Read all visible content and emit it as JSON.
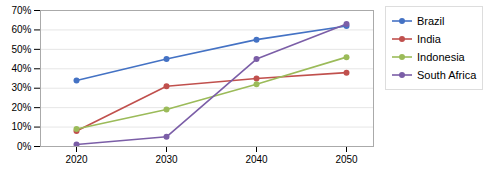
{
  "chart_data": {
    "type": "line",
    "x": [
      2020,
      2030,
      2040,
      2050
    ],
    "series": [
      {
        "name": "Brazil",
        "color": "#4472C4",
        "marker": "circle",
        "values": [
          34,
          45,
          55,
          62
        ]
      },
      {
        "name": "India",
        "color": "#C0504D",
        "marker": "circle",
        "values": [
          8,
          31,
          35,
          38
        ]
      },
      {
        "name": "Indonesia",
        "color": "#9BBB59",
        "marker": "circle",
        "values": [
          9,
          19,
          32,
          46
        ]
      },
      {
        "name": "South Africa",
        "color": "#7B5EA7",
        "marker": "circle",
        "values": [
          1,
          5,
          45,
          63
        ]
      }
    ],
    "xlim": [
      2016,
      2053
    ],
    "xticks": [
      2020,
      2030,
      2040,
      2050
    ],
    "ylim": [
      0,
      70
    ],
    "yticks": [
      {
        "value": 0,
        "label": "0%"
      },
      {
        "value": 10,
        "label": "10%"
      },
      {
        "value": 20,
        "label": "20%"
      },
      {
        "value": 30,
        "label": "30%"
      },
      {
        "value": 40,
        "label": "40%"
      },
      {
        "value": 50,
        "label": "50%"
      },
      {
        "value": 60,
        "label": "60%"
      },
      {
        "value": 70,
        "label": "70%"
      }
    ],
    "grid": "y",
    "legend": "right"
  }
}
